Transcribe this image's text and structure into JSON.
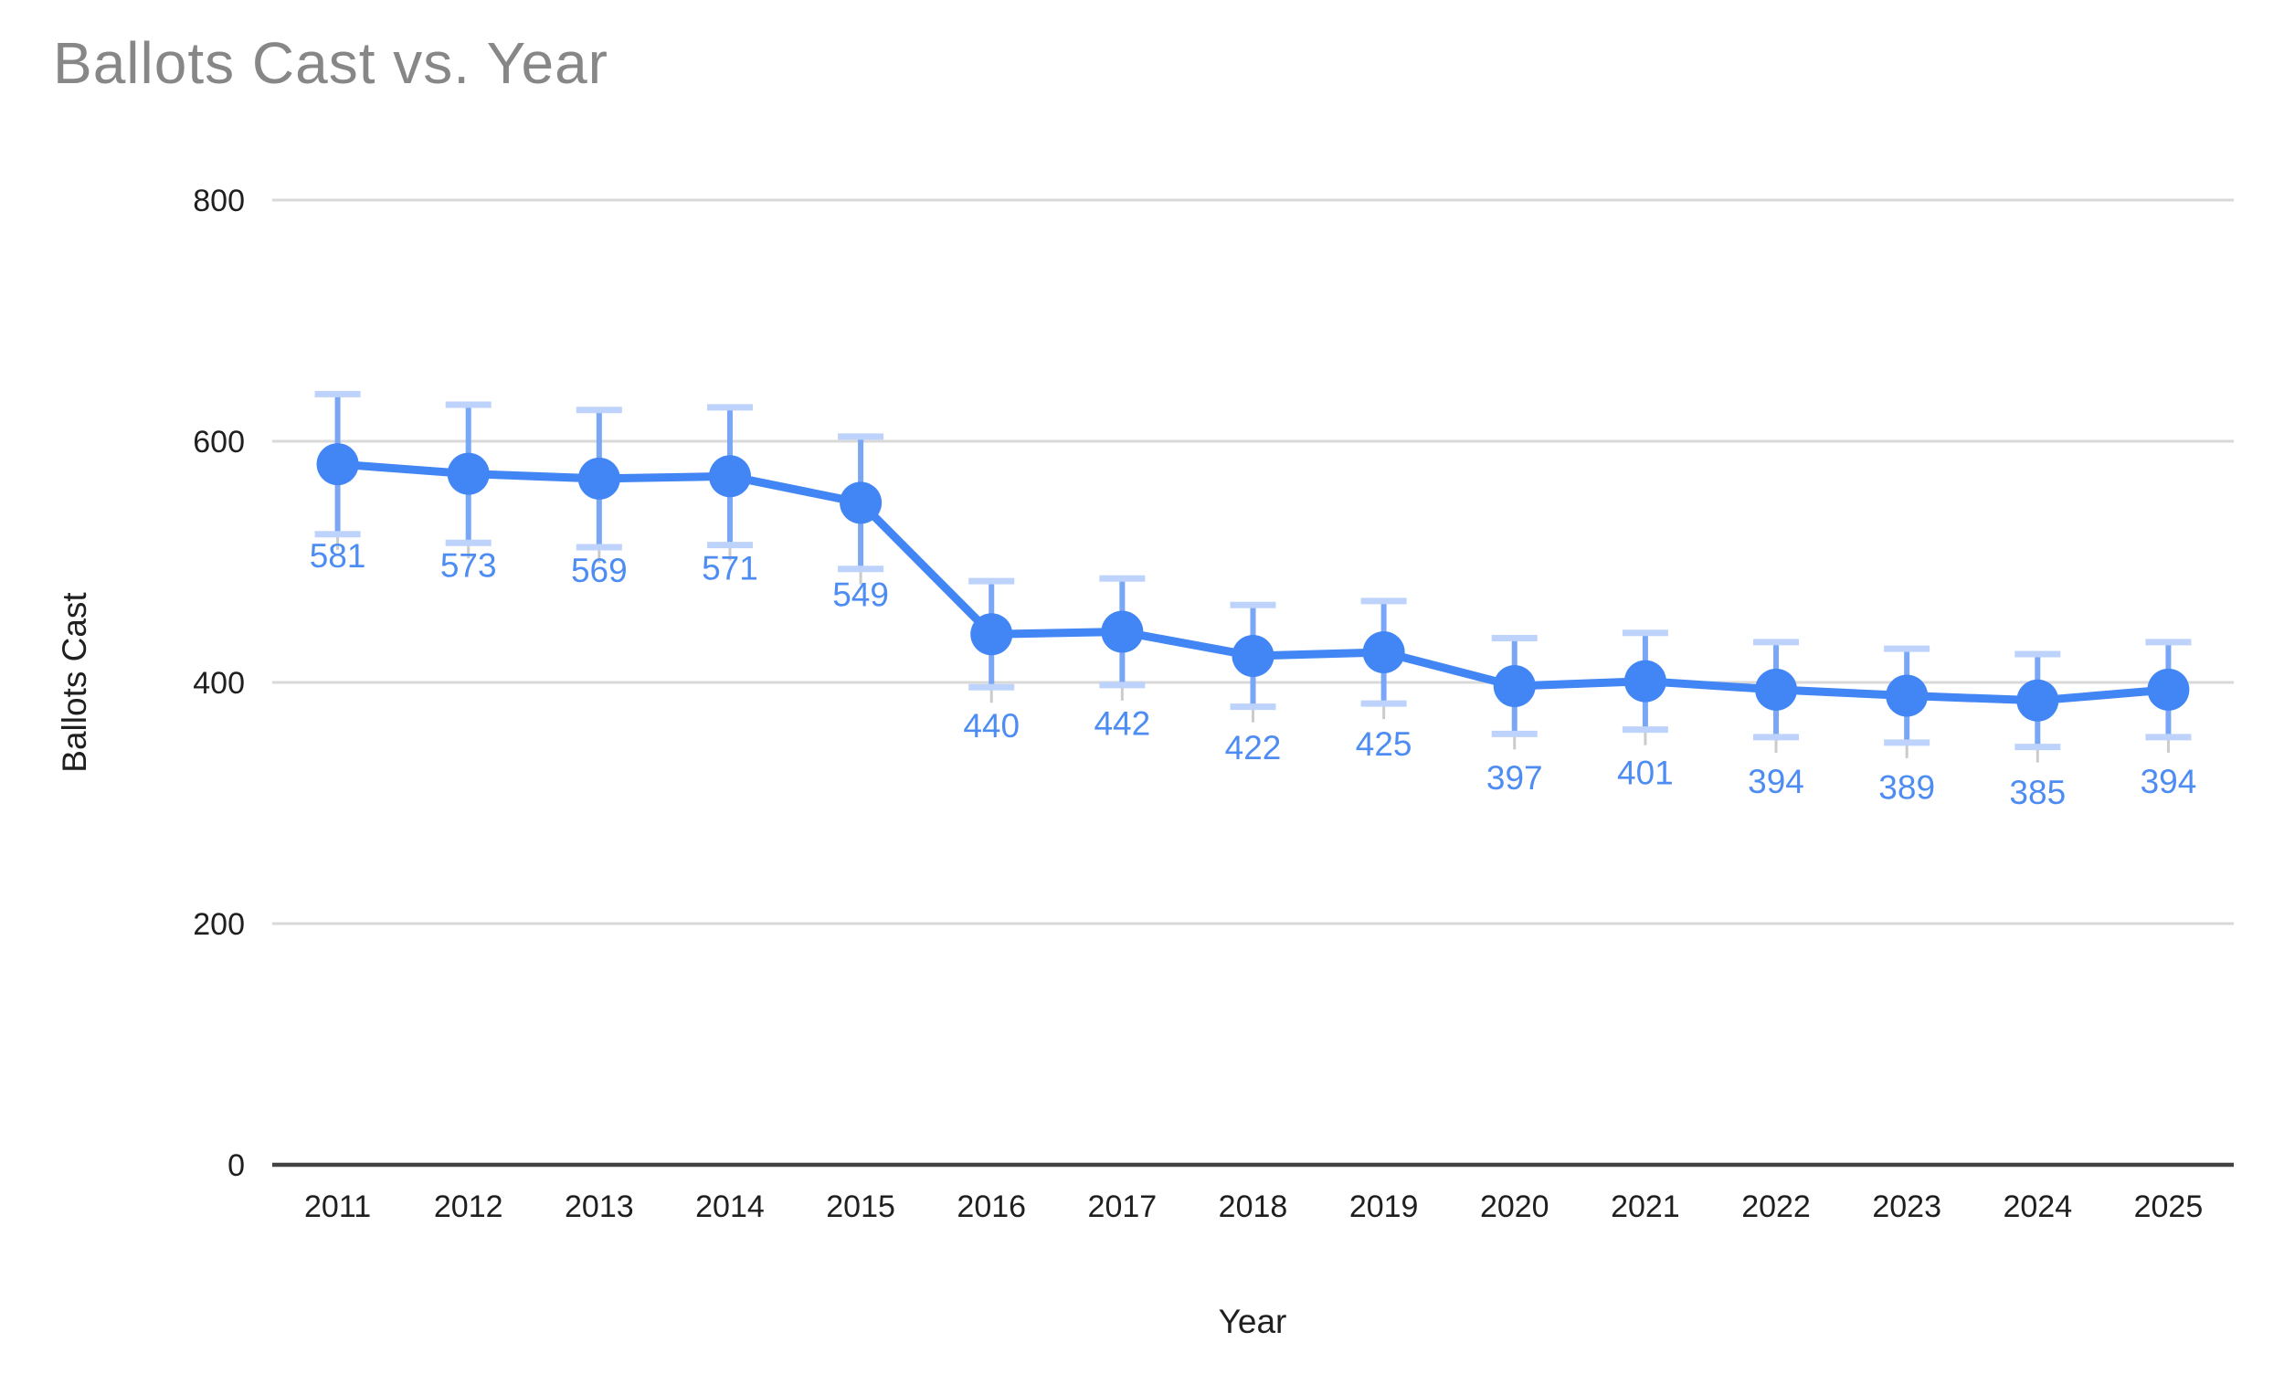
{
  "chart_data": {
    "type": "line",
    "title": "Ballots Cast vs. Year",
    "xlabel": "Year",
    "ylabel": "Ballots Cast",
    "categories": [
      "2011",
      "2012",
      "2013",
      "2014",
      "2015",
      "2016",
      "2017",
      "2018",
      "2019",
      "2020",
      "2021",
      "2022",
      "2023",
      "2024",
      "2025"
    ],
    "series": [
      {
        "name": "Ballots Cast",
        "values": [
          581,
          573,
          569,
          571,
          549,
          440,
          442,
          422,
          425,
          397,
          401,
          394,
          389,
          385,
          394
        ]
      }
    ],
    "data_labels": [
      "581",
      "573",
      "569",
      "571",
      "549",
      "440",
      "442",
      "422",
      "425",
      "397",
      "401",
      "394",
      "389",
      "385",
      "394"
    ],
    "error_bars": {
      "type": "percent",
      "value": 10
    },
    "ylim": [
      0,
      800
    ],
    "yticks": [
      0,
      200,
      400,
      600,
      800
    ],
    "grid": true,
    "legend_position": "none",
    "colors": {
      "series": "#4285f4",
      "error_stem": "#7aa6f6",
      "error_cap": "#bdd3fb",
      "error_tail": "#cbcbcb",
      "gridline": "#d9d9d9",
      "axis_line": "#424242",
      "title": "#878787",
      "tick_label": "#1f1f1f",
      "data_label": "#4d8cf3"
    }
  }
}
